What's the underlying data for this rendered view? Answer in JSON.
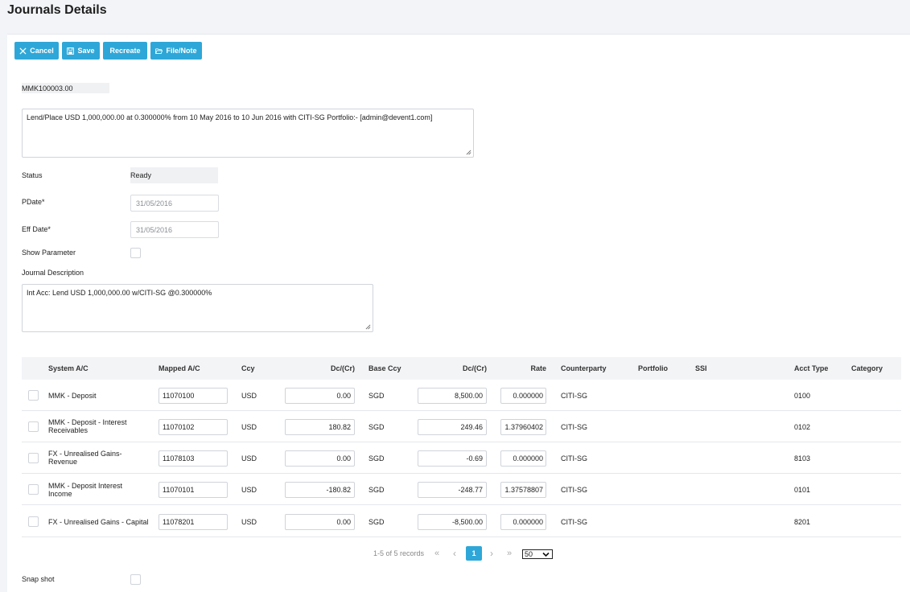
{
  "page": {
    "title": "Journals Details"
  },
  "toolbar": {
    "cancel_label": "Cancel",
    "save_label": "Save",
    "recreate_label": "Recreate",
    "filenote_label": "File/Note"
  },
  "form": {
    "reference": "MMK100003.00",
    "deal_description": "Lend/Place USD 1,000,000.00 at 0.300000% from 10 May 2016 to 10 Jun 2016 with CITI-SG  Portfolio:- [admin@devent1.com]",
    "status_label": "Status",
    "status_value": "Ready",
    "pdate_label": "PDate*",
    "pdate_value": "31/05/2016",
    "effdate_label": "Eff Date*",
    "effdate_value": "31/05/2016",
    "show_parameter_label": "Show Parameter",
    "journal_description_label": "Journal Description",
    "journal_description_value": "Int Acc: Lend USD 1,000,000.00 w/CITI-SG @0.300000%",
    "snapshot_label": "Snap shot"
  },
  "grid": {
    "columns": {
      "system_ac": "System A/C",
      "mapped_ac": "Mapped A/C",
      "ccy": "Ccy",
      "dc_cr": "Dc/(Cr)",
      "base_ccy": "Base Ccy",
      "dc_cr_base": "Dc/(Cr)",
      "rate": "Rate",
      "counterparty": "Counterparty",
      "portfolio": "Portfolio",
      "ssi": "SSI",
      "acct_type": "Acct Type",
      "category": "Category"
    },
    "rows": [
      {
        "system_ac_1": "MMK - Deposit",
        "system_ac_2": "",
        "mapped_ac": "11070100",
        "ccy": "USD",
        "dc_cr": "0.00",
        "base_ccy": "SGD",
        "dc_cr_base": "8,500.00",
        "rate": "0.000000",
        "counterparty": "CITI-SG",
        "acct_type": "0100"
      },
      {
        "system_ac_1": "MMK - Deposit - Interest",
        "system_ac_2": "Receivables",
        "mapped_ac": "11070102",
        "ccy": "USD",
        "dc_cr": "180.82",
        "base_ccy": "SGD",
        "dc_cr_base": "249.46",
        "rate": "1.37960402",
        "counterparty": "CITI-SG",
        "acct_type": "0102"
      },
      {
        "system_ac_1": "FX - Unrealised Gains-",
        "system_ac_2": "Revenue",
        "mapped_ac": "11078103",
        "ccy": "USD",
        "dc_cr": "0.00",
        "base_ccy": "SGD",
        "dc_cr_base": "-0.69",
        "rate": "0.000000",
        "counterparty": "CITI-SG",
        "acct_type": "8103"
      },
      {
        "system_ac_1": "MMK - Deposit Interest",
        "system_ac_2": "Income",
        "mapped_ac": "11070101",
        "ccy": "USD",
        "dc_cr": "-180.82",
        "base_ccy": "SGD",
        "dc_cr_base": "-248.77",
        "rate": "1.37578807",
        "counterparty": "CITI-SG",
        "acct_type": "0101"
      },
      {
        "system_ac_1": "FX - Unrealised Gains - Capital",
        "system_ac_2": "",
        "mapped_ac": "11078201",
        "ccy": "USD",
        "dc_cr": "0.00",
        "base_ccy": "SGD",
        "dc_cr_base": "-8,500.00",
        "rate": "0.000000",
        "counterparty": "CITI-SG",
        "acct_type": "8201"
      }
    ]
  },
  "pagination": {
    "summary": "1-5 of 5 records",
    "first": "«",
    "prev": "‹",
    "current": "1",
    "next": "›",
    "last": "»",
    "page_size": "50"
  },
  "colors": {
    "accent": "#2ea7d8",
    "header_bg": "#f3f4f6",
    "page_bg": "#f2f4f7"
  }
}
